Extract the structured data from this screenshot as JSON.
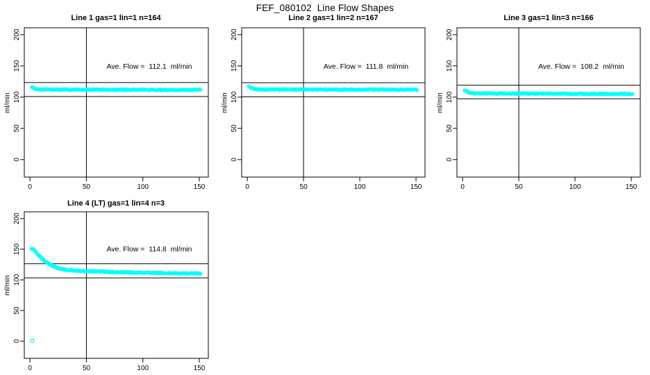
{
  "figure": {
    "title": "FEF_080102  Line Flow Shapes",
    "background_color": "#ffffff",
    "marker_color": "#00ffff",
    "line_color": "#000000"
  },
  "chart_data": [
    {
      "type": "scatter",
      "title": "Line 1 gas=1 lin=1 n=164",
      "gas": 1,
      "lin": 1,
      "n": 164,
      "annotation": "Ave. Flow =  112.1  ml/min",
      "ave_flow_ml_min": 112.1,
      "xlabel": "",
      "ylabel": "ml/min",
      "xlim": [
        -5,
        158
      ],
      "ylim": [
        -28,
        211
      ],
      "xticks": [
        0,
        50,
        100,
        150
      ],
      "yticks": [
        0,
        50,
        100,
        150,
        200
      ],
      "vline_x": 50,
      "hlines": [
        123.3,
        100.9
      ],
      "marker": "open-circle",
      "marker_color": "#00ffff",
      "n_markers": 260,
      "series": [
        {
          "name": "flow",
          "profile": [
            [
              1.5,
              116.5
            ],
            [
              2.5,
              115.5
            ],
            [
              4,
              114
            ],
            [
              6,
              112.8
            ],
            [
              9,
              112.2
            ],
            [
              15,
              112.0
            ],
            [
              40,
              112.0
            ],
            [
              80,
              111.8
            ],
            [
              120,
              111.7
            ],
            [
              151,
              111.7
            ]
          ]
        }
      ],
      "outliers": []
    },
    {
      "type": "scatter",
      "title": "Line 2 gas=1 lin=2 n=167",
      "gas": 1,
      "lin": 2,
      "n": 167,
      "annotation": "Ave. Flow =  111.8  ml/min",
      "ave_flow_ml_min": 111.8,
      "xlabel": "",
      "ylabel": "ml/min",
      "xlim": [
        -5,
        158
      ],
      "ylim": [
        -28,
        211
      ],
      "xticks": [
        0,
        50,
        100,
        150
      ],
      "yticks": [
        0,
        50,
        100,
        150,
        200
      ],
      "vline_x": 50,
      "hlines": [
        123.0,
        100.6
      ],
      "marker": "open-circle",
      "marker_color": "#00ffff",
      "n_markers": 260,
      "series": [
        {
          "name": "flow",
          "profile": [
            [
              1.5,
              117
            ],
            [
              2.5,
              116
            ],
            [
              4,
              114.2
            ],
            [
              6,
              113
            ],
            [
              9,
              112.4
            ],
            [
              15,
              112.2
            ],
            [
              40,
              112.2
            ],
            [
              80,
              112.1
            ],
            [
              120,
              112.0
            ],
            [
              151,
              112.0
            ]
          ]
        }
      ],
      "outliers": []
    },
    {
      "type": "scatter",
      "title": "Line 3 gas=1 lin=3 n=166",
      "gas": 1,
      "lin": 3,
      "n": 166,
      "annotation": "Ave. Flow =  108.2  ml/min",
      "ave_flow_ml_min": 108.2,
      "xlabel": "",
      "ylabel": "ml/min",
      "xlim": [
        -5,
        158
      ],
      "ylim": [
        -28,
        211
      ],
      "xticks": [
        0,
        50,
        100,
        150
      ],
      "yticks": [
        0,
        50,
        100,
        150,
        200
      ],
      "vline_x": 50,
      "hlines": [
        119.0,
        97.4
      ],
      "marker": "open-circle",
      "marker_color": "#00ffff",
      "n_markers": 260,
      "series": [
        {
          "name": "flow",
          "profile": [
            [
              1.5,
              111.5
            ],
            [
              2.5,
              110.5
            ],
            [
              4,
              108.8
            ],
            [
              6,
              107.2
            ],
            [
              9,
              106.4
            ],
            [
              15,
              106.0
            ],
            [
              40,
              105.8
            ],
            [
              80,
              105.5
            ],
            [
              120,
              105.3
            ],
            [
              151,
              105.2
            ]
          ]
        }
      ],
      "outliers": []
    },
    {
      "type": "scatter",
      "title": "Line 4 (LT) gas=1 lin=4 n=3",
      "gas": 1,
      "lin": 4,
      "n": 3,
      "annotation": "Ave. Flow =  114.8  ml/min",
      "ave_flow_ml_min": 114.8,
      "xlabel": "",
      "ylabel": "ml/min",
      "xlim": [
        -5,
        158
      ],
      "ylim": [
        -28,
        211
      ],
      "xticks": [
        0,
        50,
        100,
        150
      ],
      "yticks": [
        0,
        50,
        100,
        150,
        200
      ],
      "vline_x": 50,
      "hlines": [
        126.3,
        103.3
      ],
      "marker": "open-circle",
      "marker_color": "#00ffff",
      "n_markers": 320,
      "series": [
        {
          "name": "flow",
          "profile": [
            [
              1.5,
              150.5
            ],
            [
              3,
              149.5
            ],
            [
              5,
              146
            ],
            [
              7,
              141.5
            ],
            [
              9,
              137.5
            ],
            [
              12,
              132.5
            ],
            [
              15,
              128.5
            ],
            [
              18,
              125
            ],
            [
              21,
              122
            ],
            [
              24,
              119.8
            ],
            [
              28,
              117.8
            ],
            [
              33,
              116.3
            ],
            [
              40,
              115.2
            ],
            [
              50,
              114.3
            ],
            [
              65,
              113.3
            ],
            [
              85,
              112.3
            ],
            [
              110,
              111.3
            ],
            [
              135,
              110.7
            ],
            [
              151,
              110.4
            ]
          ]
        }
      ],
      "outliers": [
        [
          2,
          0.5
        ]
      ]
    }
  ]
}
